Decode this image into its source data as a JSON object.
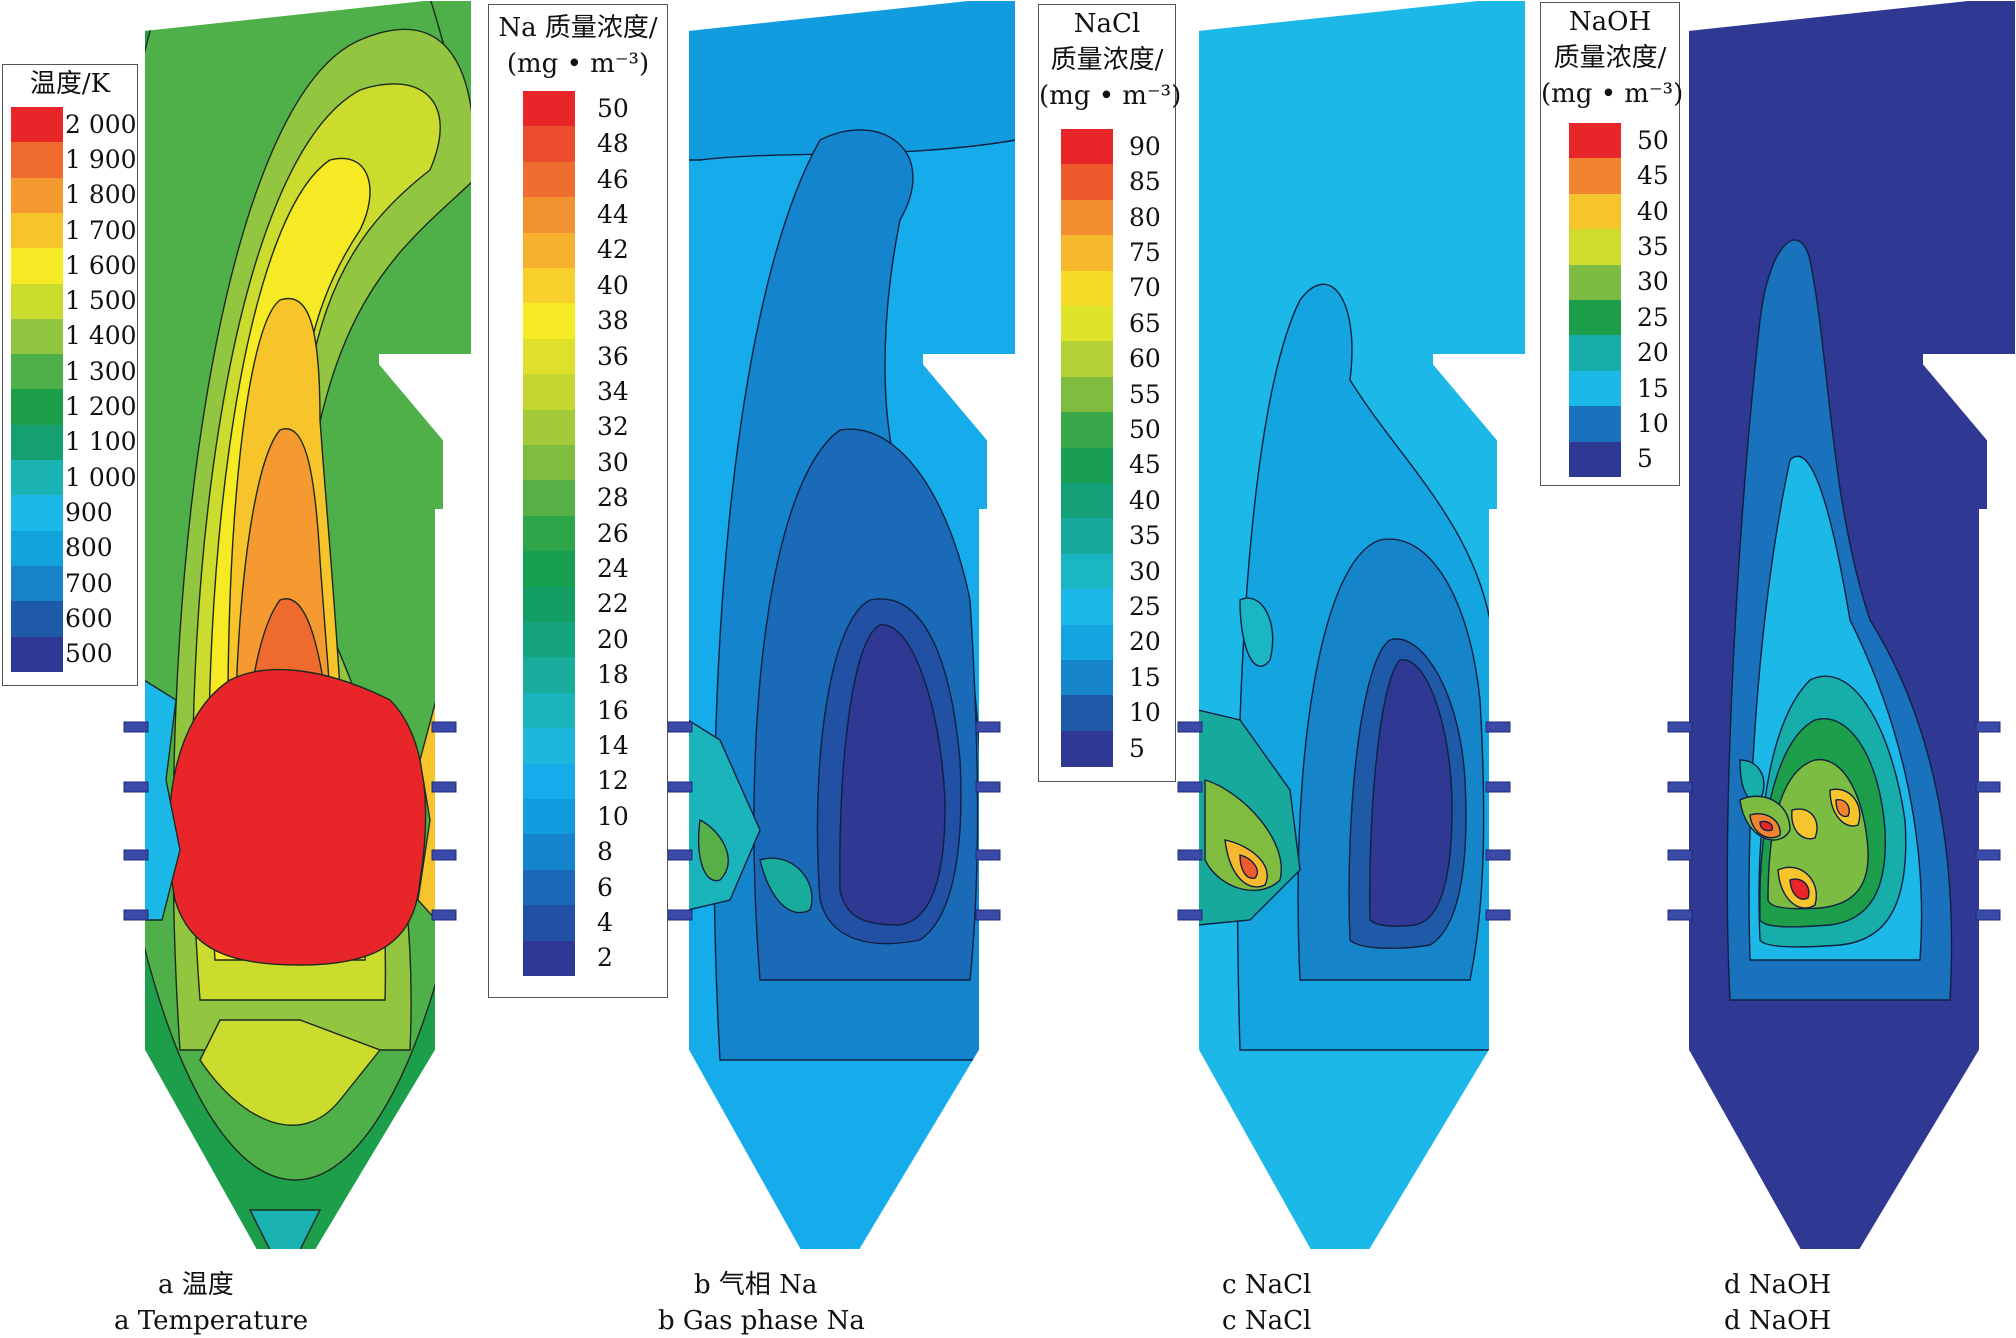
{
  "figure": {
    "panels": [
      {
        "id": "a",
        "field": "temperature",
        "caption_cn": "a 温度",
        "caption_en": "a Temperature",
        "legend": {
          "title_lines": [
            "温度/K"
          ],
          "values": [
            "2 000",
            "1 900",
            "1 800",
            "1 700",
            "1 600",
            "1 500",
            "1 400",
            "1 300",
            "1 200",
            "1 100",
            "1 000",
            "900",
            "800",
            "700",
            "600",
            "500"
          ],
          "colors": [
            "#e8262a",
            "#ee6a2e",
            "#f49a30",
            "#f8c42b",
            "#f6ea25",
            "#cbdc2e",
            "#92c640",
            "#4fb04a",
            "#1c9e4b",
            "#14a073",
            "#1ab2b2",
            "#1cb8e8",
            "#12a2dc",
            "#1882c8",
            "#1f5aa8",
            "#2f3993"
          ]
        }
      },
      {
        "id": "b",
        "field": "gas_phase_na",
        "caption_cn": "b 气相 Na",
        "caption_en": "b Gas phase Na",
        "legend": {
          "title_lines": [
            "Na 质量浓度/",
            "(mg • m⁻³)"
          ],
          "values": [
            "50",
            "48",
            "46",
            "44",
            "42",
            "40",
            "38",
            "36",
            "34",
            "32",
            "30",
            "28",
            "26",
            "24",
            "22",
            "20",
            "18",
            "16",
            "14",
            "12",
            "10",
            "8",
            "6",
            "4",
            "2"
          ],
          "colors": [
            "#e8262a",
            "#ec4d2c",
            "#ef6e2f",
            "#f29130",
            "#f5b12e",
            "#f8d02b",
            "#f6ea25",
            "#dfe02a",
            "#c4d630",
            "#a3ca38",
            "#80bc40",
            "#57b047",
            "#2fa54a",
            "#18a051",
            "#139e65",
            "#15a47f",
            "#18ac9c",
            "#1bb4bb",
            "#1cb8dc",
            "#16acec",
            "#129ce0",
            "#1484cc",
            "#1a6ab8",
            "#2150a4",
            "#2f3993"
          ]
        }
      },
      {
        "id": "c",
        "field": "nacl",
        "caption_cn": "c NaCl",
        "caption_en": "c NaCl",
        "legend": {
          "title_lines": [
            "NaCl",
            "质量浓度/",
            "(mg • m⁻³)"
          ],
          "values": [
            "90",
            "85",
            "80",
            "75",
            "70",
            "65",
            "60",
            "55",
            "50",
            "45",
            "40",
            "35",
            "30",
            "25",
            "20",
            "15",
            "10",
            "5"
          ],
          "colors": [
            "#e8262a",
            "#ee5a2d",
            "#f28e30",
            "#f6b82d",
            "#f6dc27",
            "#dde42a",
            "#b4d236",
            "#80bc40",
            "#3aa84a",
            "#1a9e55",
            "#14a077",
            "#17aa9c",
            "#1ab6c4",
            "#1cb8e8",
            "#14a4e0",
            "#1684c8",
            "#1f5aa8",
            "#2f3993"
          ]
        }
      },
      {
        "id": "d",
        "field": "naoh",
        "caption_cn": "d NaOH",
        "caption_en": "d NaOH",
        "legend": {
          "title_lines": [
            "NaOH",
            "质量浓度/",
            "(mg • m⁻³)"
          ],
          "values": [
            "50",
            "45",
            "40",
            "35",
            "30",
            "25",
            "20",
            "15",
            "10",
            "5"
          ],
          "colors": [
            "#e8262a",
            "#f28430",
            "#f6c42c",
            "#cfdc2e",
            "#7cbc42",
            "#1c9e4b",
            "#17aeaa",
            "#1cb8e8",
            "#1a72bc",
            "#2f3993"
          ]
        }
      }
    ]
  }
}
